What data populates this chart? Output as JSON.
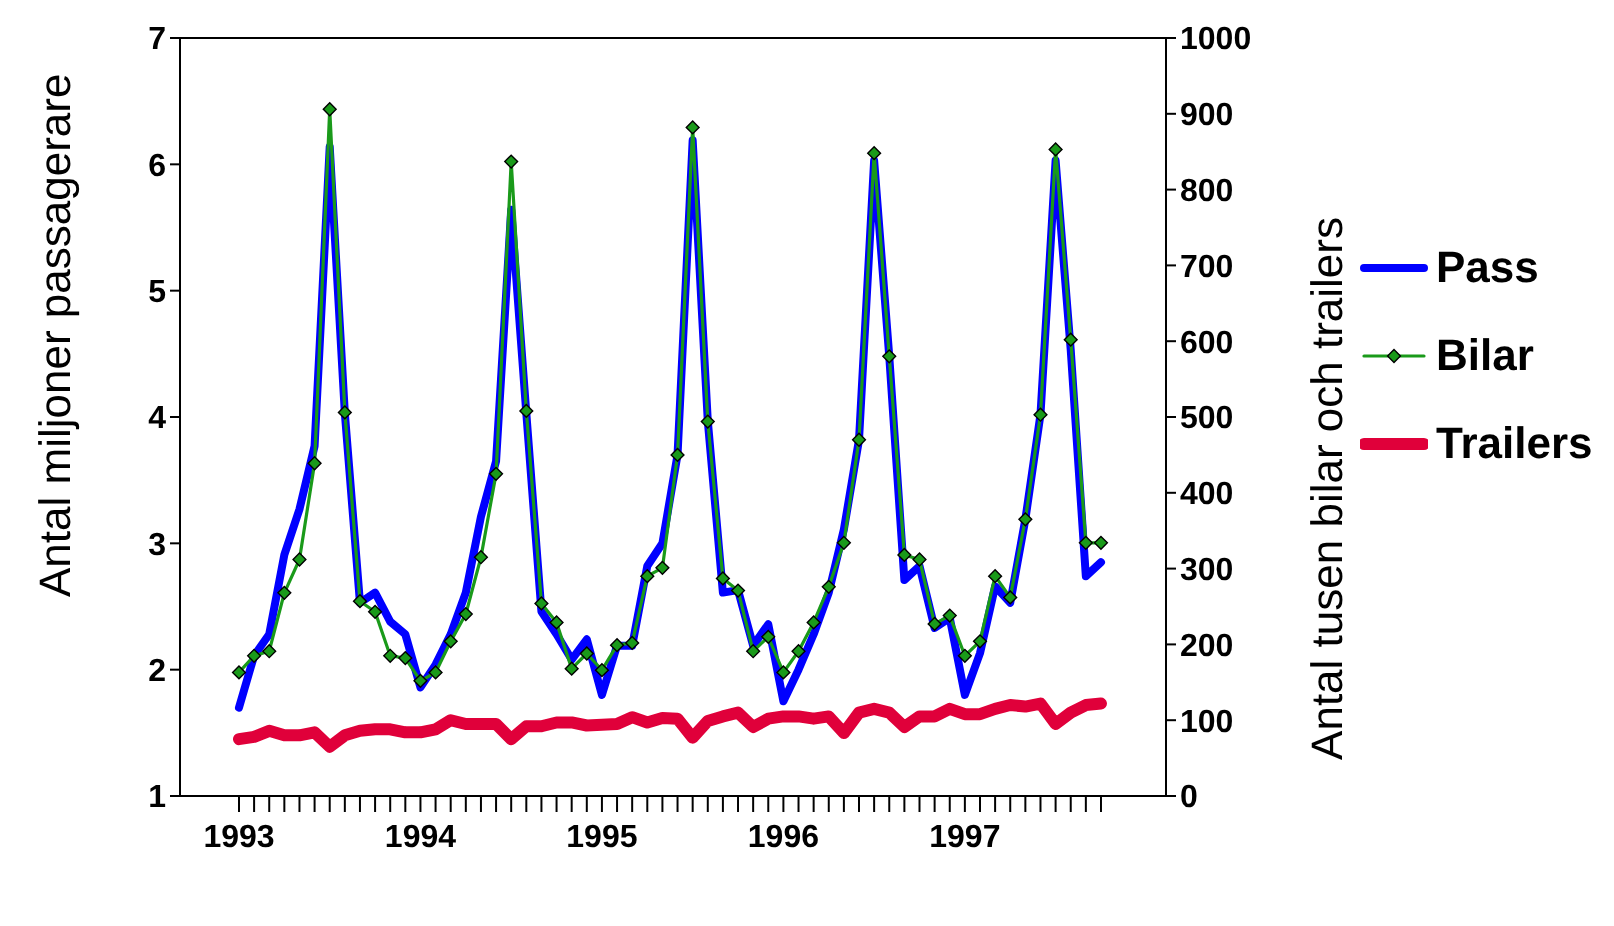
{
  "chart_data": {
    "type": "line",
    "ylabel": "Antal miljoner passagerare",
    "y2label": "Antal tusen bilar och trailers",
    "categories": [
      "1993",
      null,
      null,
      null,
      null,
      null,
      null,
      null,
      null,
      null,
      null,
      null,
      "1994",
      null,
      null,
      null,
      null,
      null,
      null,
      null,
      null,
      null,
      null,
      null,
      "1995",
      null,
      null,
      null,
      null,
      null,
      null,
      null,
      null,
      null,
      null,
      null,
      "1996",
      null,
      null,
      null,
      null,
      null,
      null,
      null,
      null,
      null,
      null,
      null,
      "1997",
      null,
      null,
      null,
      null,
      null,
      null,
      null,
      null,
      null
    ],
    "series": [
      {
        "name": "Pass",
        "color": "#0000ff",
        "marker": "none",
        "values": [
          1.7,
          2.11,
          2.28,
          2.91,
          3.27,
          3.77,
          6.14,
          4.03,
          2.53,
          2.61,
          2.38,
          2.28,
          1.86,
          2.04,
          2.28,
          2.61,
          3.21,
          3.65,
          5.64,
          4.03,
          2.46,
          2.28,
          2.08,
          2.24,
          1.8,
          2.19,
          2.19,
          2.82,
          3.0,
          3.7,
          6.19,
          3.97,
          2.61,
          2.63,
          2.19,
          2.36,
          1.75,
          2.0,
          2.28,
          2.61,
          3.11,
          3.82,
          6.03,
          4.48,
          2.71,
          2.82,
          2.33,
          2.41,
          1.8,
          2.13,
          2.66,
          2.53,
          3.19,
          4.02,
          6.03,
          4.53,
          2.74,
          2.85
        ]
      },
      {
        "name": "Bilar",
        "color": "#1a9a1a",
        "marker": "diamond",
        "axis": "y2",
        "values": [
          163,
          185,
          191,
          268,
          312,
          439,
          906,
          506,
          257,
          243,
          185,
          182,
          152,
          163,
          204,
          240,
          315,
          425,
          837,
          508,
          254,
          229,
          168,
          188,
          166,
          199,
          202,
          290,
          301,
          450,
          882,
          494,
          287,
          271,
          191,
          210,
          163,
          191,
          229,
          276,
          334,
          470,
          848,
          580,
          318,
          312,
          227,
          238,
          185,
          204,
          290,
          262,
          365,
          503,
          853,
          602,
          334,
          334
        ]
      },
      {
        "name": "Trailers",
        "color": "#e0003a",
        "marker": "none",
        "axis": "y2",
        "values": [
          75,
          78,
          86,
          80,
          80,
          84,
          65,
          80,
          86,
          88,
          88,
          84,
          84,
          88,
          100,
          95,
          95,
          95,
          75,
          92,
          92,
          97,
          97,
          93,
          94,
          95,
          104,
          97,
          103,
          102,
          77,
          99,
          105,
          110,
          91,
          102,
          105,
          105,
          102,
          105,
          83,
          110,
          115,
          110,
          91,
          105,
          105,
          115,
          108,
          108,
          115,
          120,
          118,
          122,
          95,
          110,
          120,
          122
        ]
      }
    ],
    "ylim": [
      1,
      7
    ],
    "yticks": [
      1,
      2,
      3,
      4,
      5,
      6,
      7
    ],
    "y2lim": [
      0,
      1000
    ],
    "y2ticks": [
      0,
      100,
      200,
      300,
      400,
      500,
      600,
      700,
      800,
      900,
      1000
    ],
    "grid": false,
    "legend": "right"
  }
}
